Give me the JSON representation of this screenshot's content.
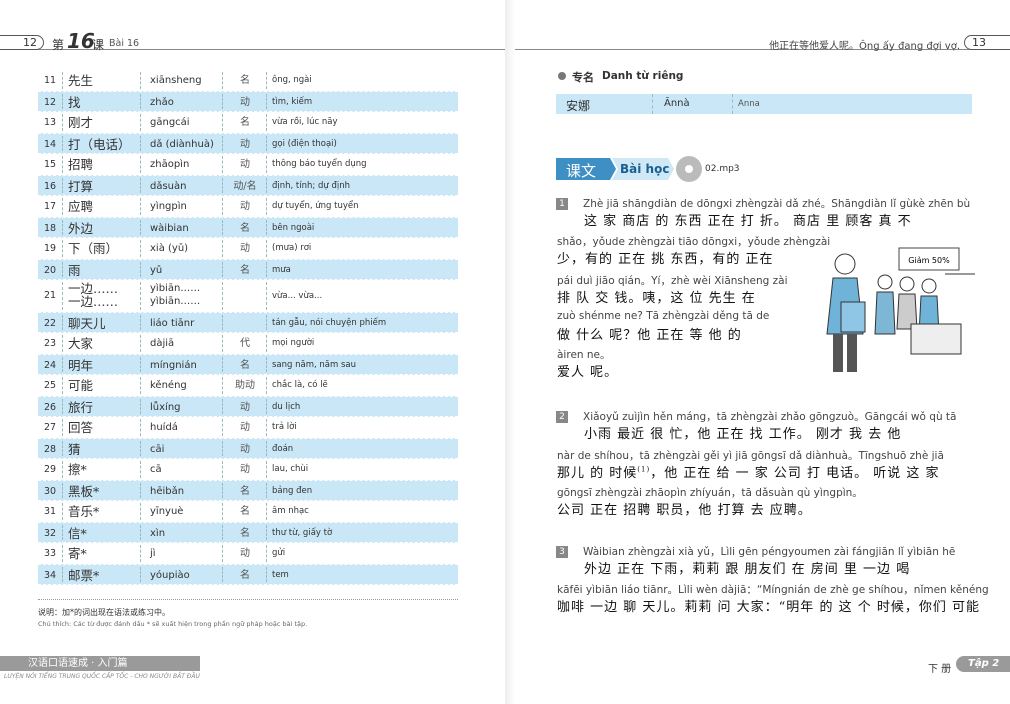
{
  "left_page": {
    "header": {
      "page_number": "12",
      "lesson_prefix": "第",
      "lesson_number": "16",
      "lesson_suffix": "课",
      "lesson_vi": "Bài 16"
    },
    "vocab": [
      {
        "num": "11",
        "hanzi": "先生",
        "pinyin": "xiānsheng",
        "pos": "名",
        "meaning": "ông, ngài"
      },
      {
        "num": "12",
        "hanzi": "找",
        "pinyin": "zhǎo",
        "pos": "动",
        "meaning": "tìm, kiếm"
      },
      {
        "num": "13",
        "hanzi": "刚才",
        "pinyin": "gāngcái",
        "pos": "名",
        "meaning": "vừa rồi, lúc nãy"
      },
      {
        "num": "14",
        "hanzi": "打（电话）",
        "pinyin": "dǎ (diànhuà)",
        "pos": "动",
        "meaning": "gọi (điện thoại)"
      },
      {
        "num": "15",
        "hanzi": "招聘",
        "pinyin": "zhāopìn",
        "pos": "动",
        "meaning": "thông báo tuyển dụng"
      },
      {
        "num": "16",
        "hanzi": "打算",
        "pinyin": "dǎsuàn",
        "pos": "动/名",
        "meaning": "định, tính; dự định"
      },
      {
        "num": "17",
        "hanzi": "应聘",
        "pinyin": "yìngpìn",
        "pos": "动",
        "meaning": "dự tuyển, ứng tuyển"
      },
      {
        "num": "18",
        "hanzi": "外边",
        "pinyin": "wàibian",
        "pos": "名",
        "meaning": "bên ngoài"
      },
      {
        "num": "19",
        "hanzi": "下（雨）",
        "pinyin": "xià (yǔ)",
        "pos": "动",
        "meaning": "(mưa) rơi"
      },
      {
        "num": "20",
        "hanzi": "雨",
        "pinyin": "yǔ",
        "pos": "名",
        "meaning": "mưa"
      },
      {
        "num": "21",
        "hanzi": [
          "一边……",
          "一边……"
        ],
        "pinyin": [
          "yìbiān……",
          "yìbiān……"
        ],
        "meaning": "vừa... vừa..."
      },
      {
        "num": "22",
        "hanzi": "聊天儿",
        "pinyin": "liáo tiānr",
        "meaning": "tán gẫu, nói chuyện phiếm"
      },
      {
        "num": "23",
        "hanzi": "大家",
        "pinyin": "dàjiā",
        "pos": "代",
        "meaning": "mọi người"
      },
      {
        "num": "24",
        "hanzi": "明年",
        "pinyin": "míngnián",
        "pos": "名",
        "meaning": "sang năm, năm sau"
      },
      {
        "num": "25",
        "hanzi": "可能",
        "pinyin": "kěnéng",
        "pos": "助动",
        "meaning": "chắc là, có lẽ"
      },
      {
        "num": "26",
        "hanzi": "旅行",
        "pinyin": "lǚxíng",
        "pos": "动",
        "meaning": "du lịch"
      },
      {
        "num": "27",
        "hanzi": "回答",
        "pinyin": "huídá",
        "pos": "动",
        "meaning": "trả lời"
      },
      {
        "num": "28",
        "hanzi": "猜",
        "pinyin": "cāi",
        "pos": "动",
        "meaning": "đoán"
      },
      {
        "num": "29",
        "hanzi": "擦*",
        "pinyin": "cā",
        "pos": "动",
        "meaning": "lau, chùi"
      },
      {
        "num": "30",
        "hanzi": "黑板*",
        "pinyin": "hēibǎn",
        "pos": "名",
        "meaning": "bảng đen"
      },
      {
        "num": "31",
        "hanzi": "音乐*",
        "pinyin": "yīnyuè",
        "pos": "名",
        "meaning": "âm nhạc"
      },
      {
        "num": "32",
        "hanzi": "信*",
        "pinyin": "xìn",
        "pos": "名",
        "meaning": "thư từ, giấy tờ"
      },
      {
        "num": "33",
        "hanzi": "寄*",
        "pinyin": "jì",
        "pos": "动",
        "meaning": "gửi"
      },
      {
        "num": "34",
        "hanzi": "邮票*",
        "pinyin": "yóupiào",
        "pos": "名",
        "meaning": "tem"
      }
    ],
    "note_zh": "说明：加*的词出现在语法或练习中。",
    "note_vi": "Chú thích: Các từ được đánh dấu * sẽ xuất hiện trong phần ngữ pháp hoặc bài tập.",
    "footer": {
      "book_zh": "汉语口语速成 · 入门篇",
      "book_vi": "LUYỆN NÓI TIẾNG TRUNG QUỐC CẤP TỐC - CHO NGƯỜI BẮT ĐẦU"
    }
  },
  "right_page": {
    "header": {
      "title": "他正在等他爱人呢。Ông ấy đang đợi vợ.",
      "page_number": "13"
    },
    "proper_nouns": {
      "heading_zh": "专名",
      "heading_vi": "Danh từ riêng",
      "row": {
        "hanzi": "安娜",
        "pinyin": "Ānnà",
        "meaning": "Anna"
      }
    },
    "lesson": {
      "tag_zh": "课文",
      "tag_vi": "Bài học",
      "audio": "02.mp3"
    },
    "illustration": {
      "sign": "Giảm 50%"
    },
    "paragraphs": [
      {
        "number": "1",
        "lines": [
          {
            "pinyin": "Zhè jiā shāngdiàn de dōngxi zhèngzài dǎ zhé。Shāngdiàn lǐ gùkè zhēn bù",
            "hanzi": "这 家 商店 的 东西 正在 打 折。 商店 里 顾客 真 不"
          },
          {
            "pinyin": "shǎo，yǒude zhèngzài tiāo dōngxi，yǒude zhèngzài",
            "hanzi": "少，有的 正在 挑 东西，有的 正在"
          },
          {
            "pinyin": "pái duì jiāo qián。Yí，zhè wèi Xiānsheng zài",
            "hanzi": "排 队 交 钱。咦，这 位 先生 在"
          },
          {
            "pinyin": "zuò shénme ne? Tā zhèngzài děng tā de",
            "hanzi": "做 什么 呢？他 正在 等 他 的"
          },
          {
            "pinyin": "àiren ne。",
            "hanzi": "爱人 呢。"
          }
        ]
      },
      {
        "number": "2",
        "lines": [
          {
            "pinyin": "Xiǎoyǔ zuìjìn hěn máng，tā zhèngzài zhǎo gōngzuò。Gāngcái wǒ qù tā",
            "hanzi": "小雨 最近 很 忙，他 正在 找 工作。 刚才 我 去 他"
          },
          {
            "pinyin": "nàr de shíhou，tā zhèngzài gěi yì jiā gōngsī dǎ diànhuà。Tīngshuō zhè jiā",
            "hanzi": "那儿 的 时候",
            "sup": "(1)",
            "hanzi_after": "，他 正在 给 一 家 公司 打 电话。 听说 这 家"
          },
          {
            "pinyin": "gōngsī zhèngzài zhāopìn zhíyuán，tā dǎsuàn qù yìngpìn。",
            "hanzi": "公司 正在 招聘 职员，他 打算 去 应聘。"
          }
        ]
      },
      {
        "number": "3",
        "lines": [
          {
            "pinyin": "Wàibian zhèngzài xià yǔ，Lìli gēn péngyoumen zài fángjiān lǐ yìbiān hē",
            "hanzi": "外边 正在 下雨，莉莉 跟 朋友们 在 房间 里 一边 喝"
          },
          {
            "pinyin": "kāfēi yìbiān liáo tiānr。Lìli wèn dàjiā：“Míngnián de zhè ge shíhou，nǐmen kěnéng",
            "hanzi": "咖啡 一边 聊 天儿。莉莉 问 大家：“明年 的 这 个 时候，你们 可能"
          }
        ]
      }
    ],
    "footer": {
      "volume": "下 册",
      "tap": "Tập 2"
    }
  }
}
